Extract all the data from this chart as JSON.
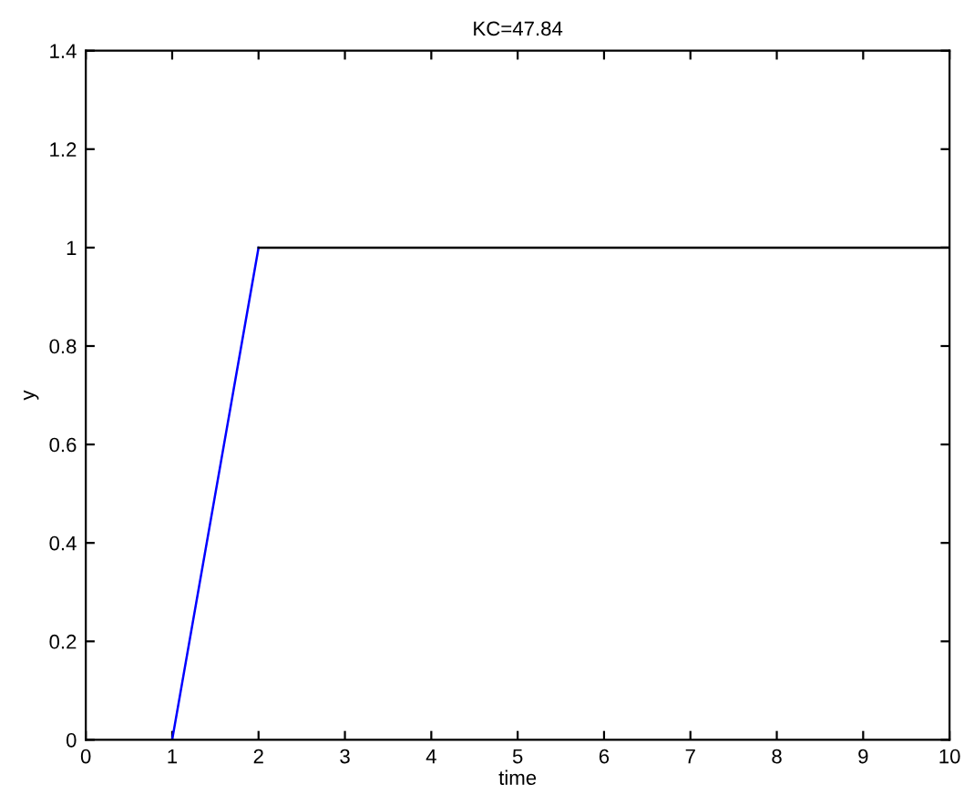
{
  "chart_data": {
    "type": "line",
    "title": "KC=47.84",
    "xlabel": "time",
    "ylabel": "y",
    "series": [
      {
        "color": "#0000ff",
        "x": [
          1,
          2
        ],
        "values": [
          0,
          1
        ]
      },
      {
        "color": "#000000",
        "x": [
          2,
          10
        ],
        "values": [
          1,
          1
        ]
      }
    ],
    "xlim": [
      0,
      10
    ],
    "xticks": [
      0,
      1,
      2,
      3,
      4,
      5,
      6,
      7,
      8,
      9,
      10
    ],
    "ylim": [
      0,
      1.4
    ],
    "yticks": [
      0,
      0.2,
      0.4,
      0.6,
      0.8,
      1,
      1.2,
      1.4
    ],
    "grid": false,
    "legend": false,
    "line_style": "solid",
    "marker": "none"
  }
}
